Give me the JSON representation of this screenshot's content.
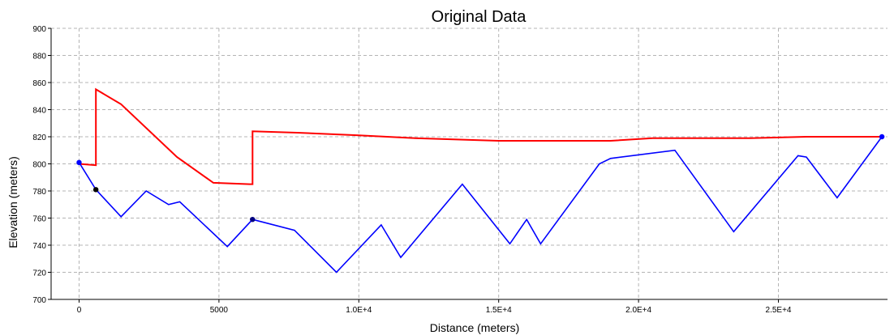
{
  "chart_data": {
    "type": "line",
    "title": "Original Data",
    "xlabel": "Distance (meters)",
    "ylabel": "Elevation (meters)",
    "xlim": [
      -1000,
      28900
    ],
    "ylim": [
      700,
      900
    ],
    "x_ticks": [
      {
        "value": 0,
        "label": "0"
      },
      {
        "value": 5000,
        "label": "5000"
      },
      {
        "value": 10000,
        "label": "1.0E+4"
      },
      {
        "value": 15000,
        "label": "1.5E+4"
      },
      {
        "value": 20000,
        "label": "2.0E+4"
      },
      {
        "value": 25000,
        "label": "2.5E+4"
      }
    ],
    "y_ticks": [
      {
        "value": 700,
        "label": "700"
      },
      {
        "value": 720,
        "label": "720"
      },
      {
        "value": 740,
        "label": "740"
      },
      {
        "value": 760,
        "label": "760"
      },
      {
        "value": 780,
        "label": "780"
      },
      {
        "value": 800,
        "label": "800"
      },
      {
        "value": 820,
        "label": "820"
      },
      {
        "value": 840,
        "label": "840"
      },
      {
        "value": 860,
        "label": "860"
      },
      {
        "value": 880,
        "label": "880"
      },
      {
        "value": 900,
        "label": "900"
      }
    ],
    "grid": true,
    "series": [
      {
        "color": "#ff0000",
        "points": [
          [
            0,
            800
          ],
          [
            600,
            799
          ],
          [
            600,
            855
          ],
          [
            1500,
            844
          ],
          [
            3500,
            805
          ],
          [
            4800,
            786
          ],
          [
            6100,
            785
          ],
          [
            6200,
            785
          ],
          [
            6200,
            824
          ],
          [
            7800,
            823
          ],
          [
            10000,
            821
          ],
          [
            12000,
            819
          ],
          [
            15000,
            817
          ],
          [
            19000,
            817
          ],
          [
            20500,
            819
          ],
          [
            24000,
            819
          ],
          [
            26000,
            820
          ],
          [
            28700,
            820
          ]
        ],
        "markers": []
      },
      {
        "color": "#0000ff",
        "points": [
          [
            0,
            801
          ],
          [
            600,
            781
          ],
          [
            1500,
            761
          ],
          [
            2400,
            780
          ],
          [
            3200,
            770
          ],
          [
            3600,
            772
          ],
          [
            5300,
            739
          ],
          [
            6200,
            759
          ],
          [
            7700,
            751
          ],
          [
            9200,
            720
          ],
          [
            10800,
            755
          ],
          [
            11500,
            731
          ],
          [
            13700,
            785
          ],
          [
            15400,
            741
          ],
          [
            16000,
            759
          ],
          [
            16500,
            741
          ],
          [
            18600,
            800
          ],
          [
            19000,
            804
          ],
          [
            21300,
            810
          ],
          [
            23400,
            750
          ],
          [
            25700,
            806
          ],
          [
            26000,
            805
          ],
          [
            27100,
            775
          ],
          [
            28700,
            820
          ]
        ],
        "markers": [
          {
            "x": 0,
            "y": 801,
            "color": "#0000ff"
          },
          {
            "x": 600,
            "y": 781,
            "color": "#000000"
          },
          {
            "x": 6200,
            "y": 759,
            "color": "#000080"
          },
          {
            "x": 28700,
            "y": 820,
            "color": "#0000ff"
          }
        ]
      }
    ]
  }
}
